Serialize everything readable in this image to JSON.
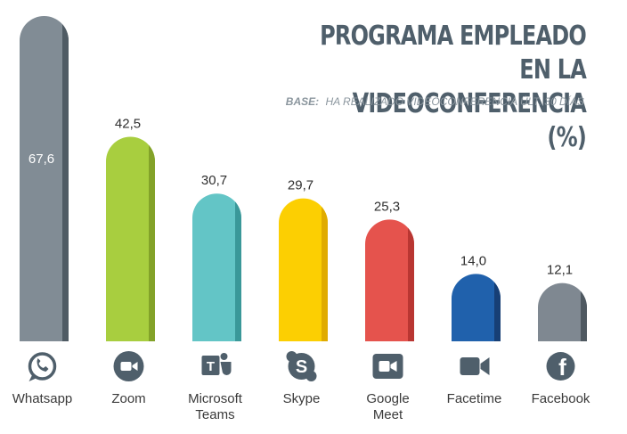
{
  "chart_data": {
    "type": "bar",
    "title": "PROGRAMA EMPLEADO EN LA VIDEOCONFERENCIA (%)",
    "title_lines": [
      "PROGRAMA EMPLEADO EN LA",
      "VIDEOCONFERENCIA (%)"
    ],
    "base_label": "BASE:",
    "base_text": "HA REALIZADO VIDEOCONFERENCIA ÚLT. 30 DÍAS",
    "categories": [
      "Whatsapp",
      "Zoom",
      "Microsoft Teams",
      "Skype",
      "Google Meet",
      "Facetime",
      "Facebook"
    ],
    "category_lines": [
      [
        "Whatsapp"
      ],
      [
        "Zoom"
      ],
      [
        "Microsoft",
        "Teams"
      ],
      [
        "Skype"
      ],
      [
        "Google",
        "Meet"
      ],
      [
        "Facetime"
      ],
      [
        "Facebook"
      ]
    ],
    "values": [
      67.6,
      42.5,
      30.7,
      29.7,
      25.3,
      14.0,
      12.1
    ],
    "value_labels": [
      "67,6",
      "42,5",
      "30,7",
      "29,7",
      "25,3",
      "14,0",
      "12,1"
    ],
    "colors": [
      "#818c95",
      "#a8ce3f",
      "#63c5c6",
      "#fccf02",
      "#e5534d",
      "#2061ac",
      "#7f8891"
    ],
    "shade_colors": [
      "#4f5b64",
      "#83a229",
      "#3a9899",
      "#e0ab00",
      "#b93632",
      "#173f75",
      "#4f5961"
    ],
    "icon_color": "#4f5f6b",
    "icons": [
      "whatsapp-icon",
      "zoom-icon",
      "teams-icon",
      "skype-icon",
      "google-meet-icon",
      "facetime-icon",
      "facebook-icon"
    ],
    "ylim": [
      0,
      67.6
    ],
    "xlabel": "",
    "ylabel": "",
    "grid": false,
    "legend": "none"
  }
}
